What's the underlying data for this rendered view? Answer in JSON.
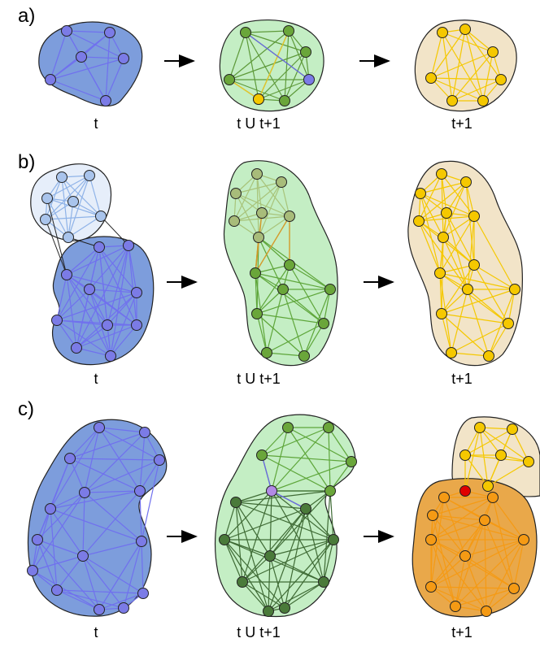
{
  "panels": [
    {
      "label": "a)",
      "captions": [
        "t",
        "t U t+1",
        "t+1"
      ]
    },
    {
      "label": "b)",
      "captions": [
        "t",
        "t U t+1",
        "t+1"
      ]
    },
    {
      "label": "c)",
      "captions": [
        "t",
        "t U t+1",
        "t+1"
      ]
    }
  ],
  "colors": {
    "blue_fill": "#7d9ddc",
    "blue_node": "#7b7be6",
    "blue_edge": "#7070ee",
    "light_blue_fill": "#e6eefa",
    "light_blue_node": "#a9c4ec",
    "green_fill": "#c4eec4",
    "green_node": "#6aa63a",
    "dark_green_node": "#4a7a3a",
    "beige_fill": "#f2e4c8",
    "yellow_node": "#f5c800",
    "orange_fill": "#e9a84a",
    "orange_node": "#f59a14",
    "red_node": "#e00000",
    "purple_node": "#b28ae6"
  }
}
